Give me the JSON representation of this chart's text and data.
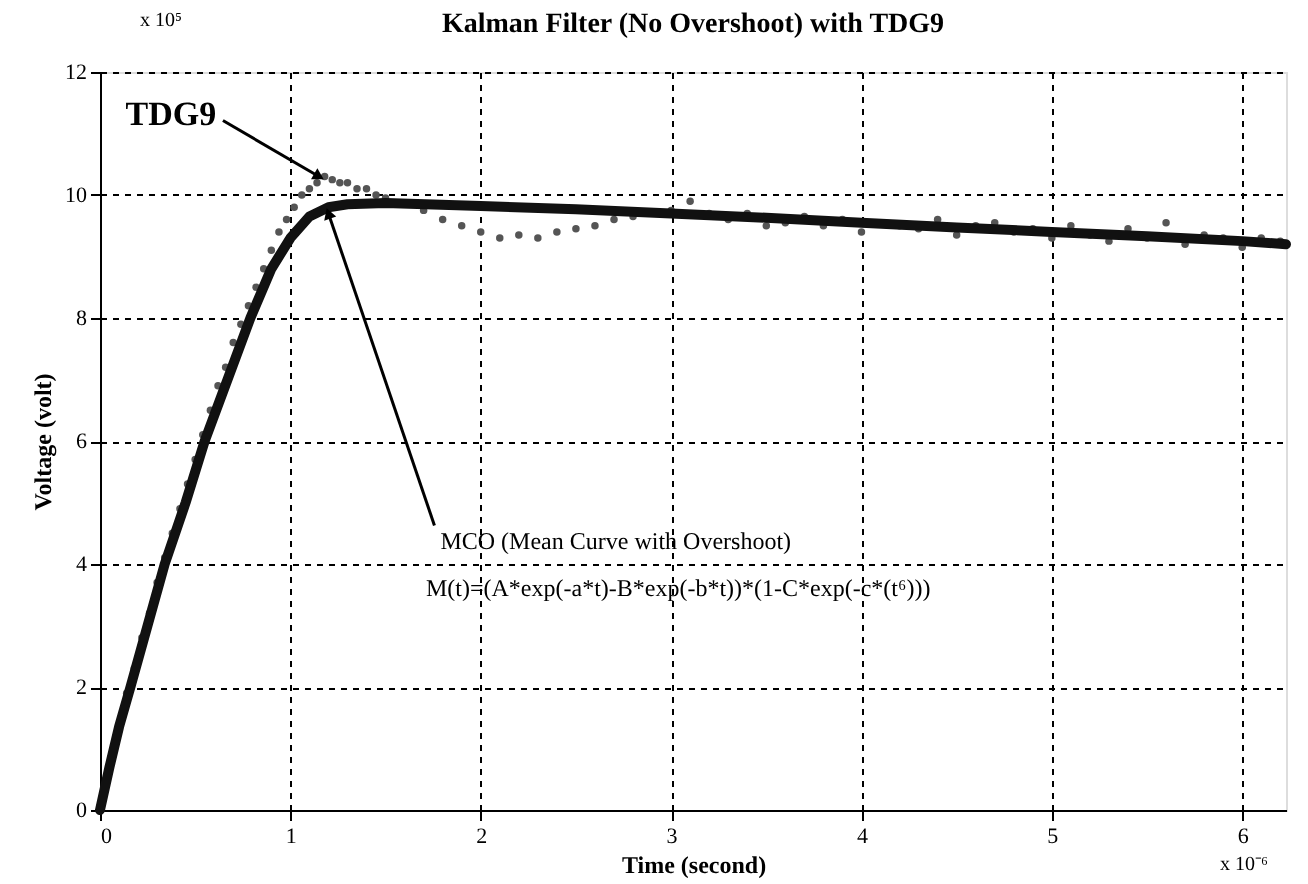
{
  "chart_data": {
    "type": "scatter",
    "title": "Kalman Filter (No Overshoot)  with TDG9",
    "xlabel": "Time (second)",
    "ylabel": "Voltage (volt)",
    "xlim": [
      0,
      6.23
    ],
    "ylim": [
      0,
      12
    ],
    "xticks": [
      0,
      1,
      2,
      3,
      4,
      5,
      6
    ],
    "yticks": [
      0,
      2,
      4,
      6,
      8,
      10,
      12
    ],
    "grid": true,
    "series": [
      {
        "color": "#555555",
        "marker": "circle",
        "x": [
          0.14,
          0.18,
          0.22,
          0.26,
          0.3,
          0.34,
          0.38,
          0.42,
          0.46,
          0.5,
          0.54,
          0.58,
          0.62,
          0.66,
          0.7,
          0.74,
          0.78,
          0.82,
          0.86,
          0.9,
          0.94,
          0.98,
          1.02,
          1.06,
          1.1,
          1.14,
          1.18,
          1.22,
          1.26,
          1.3,
          1.35,
          1.4,
          1.45,
          1.5,
          1.7,
          1.8,
          1.9,
          2.0,
          2.1,
          2.2,
          2.3,
          2.4,
          2.5,
          2.6,
          2.7,
          2.8,
          3.0,
          3.1,
          3.2,
          3.3,
          3.4,
          3.5,
          3.6,
          3.7,
          3.8,
          3.9,
          4.0,
          4.2,
          4.3,
          4.4,
          4.5,
          4.6,
          4.7,
          4.8,
          4.9,
          5.0,
          5.1,
          5.2,
          5.3,
          5.4,
          5.5,
          5.6,
          5.7,
          5.8,
          5.9,
          6.0,
          6.1,
          6.2
        ],
        "values": [
          1.9,
          2.3,
          2.8,
          3.2,
          3.7,
          4.1,
          4.5,
          4.9,
          5.3,
          5.7,
          6.1,
          6.5,
          6.9,
          7.2,
          7.6,
          7.9,
          8.2,
          8.5,
          8.8,
          9.1,
          9.4,
          9.6,
          9.8,
          10.0,
          10.1,
          10.2,
          10.3,
          10.25,
          10.2,
          10.2,
          10.1,
          10.1,
          10.0,
          9.95,
          9.75,
          9.6,
          9.5,
          9.4,
          9.3,
          9.35,
          9.3,
          9.4,
          9.45,
          9.5,
          9.6,
          9.65,
          9.75,
          9.9,
          9.7,
          9.6,
          9.7,
          9.5,
          9.55,
          9.65,
          9.5,
          9.6,
          9.4,
          9.5,
          9.45,
          9.6,
          9.35,
          9.5,
          9.55,
          9.4,
          9.45,
          9.3,
          9.5,
          9.35,
          9.25,
          9.45,
          9.3,
          9.55,
          9.2,
          9.35,
          9.3,
          9.15,
          9.3,
          9.25
        ]
      },
      {
        "type": "line",
        "color": "#111111",
        "line_style": "solid",
        "x": [
          0,
          0.05,
          0.1,
          0.16,
          0.25,
          0.34,
          0.45,
          0.55,
          0.67,
          0.79,
          0.9,
          1.0,
          1.1,
          1.2,
          1.3,
          1.5,
          2,
          2.5,
          3,
          3.5,
          4,
          4.5,
          5,
          5.5,
          6,
          6.23
        ],
        "values": [
          0,
          0.7,
          1.35,
          2,
          3,
          4,
          5,
          6,
          7,
          8,
          8.8,
          9.3,
          9.65,
          9.8,
          9.85,
          9.87,
          9.82,
          9.77,
          9.7,
          9.63,
          9.55,
          9.47,
          9.4,
          9.33,
          9.25,
          9.2
        ]
      }
    ],
    "annotations": [
      {
        "text": "TDG9",
        "x": 1.15,
        "y": 10.3
      },
      {
        "text": "MCO (Mean Curve with Overshoot)",
        "x": 1.2,
        "y": 9.7
      },
      "M(t)=(A*exp(-a*t)-B*exp(-b*t))*(1-C*exp(-c*(t⁶)))",
      "x 10⁵",
      "x 10⁻⁶"
    ]
  }
}
